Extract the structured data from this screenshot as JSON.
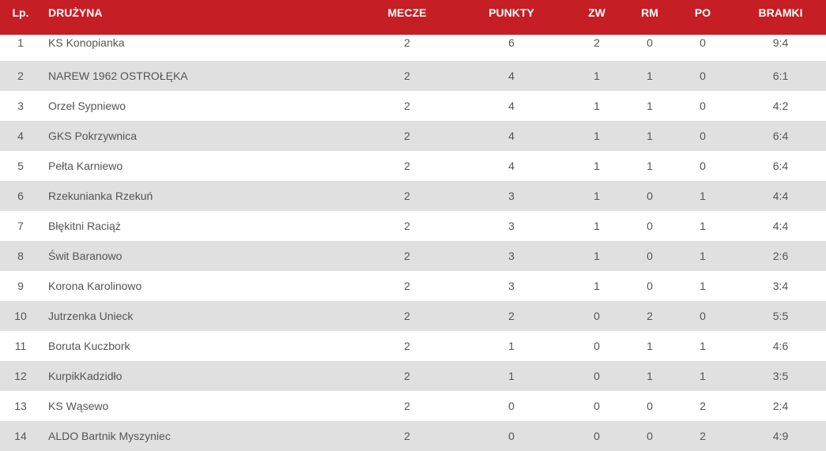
{
  "colors": {
    "header_bg": "#c51e24",
    "stripe": "#e0e0e0"
  },
  "headers": {
    "lp": "Lp.",
    "team": "DRUŻYNA",
    "matches": "MECZE",
    "points": "PUNKTY",
    "w": "ZW",
    "d": "RM",
    "l": "PO",
    "goals": "BRAMKI"
  },
  "rows": [
    [
      "1",
      "KS Konopianka",
      "2",
      "6",
      "2",
      "0",
      "0",
      "9:4"
    ],
    [
      "2",
      "NAREW 1962 OSTROŁĘKA",
      "2",
      "4",
      "1",
      "1",
      "0",
      "6:1"
    ],
    [
      "3",
      "Orzeł Sypniewo",
      "2",
      "4",
      "1",
      "1",
      "0",
      "4:2"
    ],
    [
      "4",
      "GKS Pokrzywnica",
      "2",
      "4",
      "1",
      "1",
      "0",
      "6:4"
    ],
    [
      "5",
      "Pełta Karniewo",
      "2",
      "4",
      "1",
      "1",
      "0",
      "6:4"
    ],
    [
      "6",
      "Rzekunianka Rzekuń",
      "2",
      "3",
      "1",
      "0",
      "1",
      "4:4"
    ],
    [
      "7",
      "Błękitni Raciąż",
      "2",
      "3",
      "1",
      "0",
      "1",
      "4:4"
    ],
    [
      "8",
      "Świt Baranowo",
      "2",
      "3",
      "1",
      "0",
      "1",
      "2:6"
    ],
    [
      "9",
      "Korona Karolinowo",
      "2",
      "3",
      "1",
      "0",
      "1",
      "3:4"
    ],
    [
      "10",
      "Jutrzenka Unieck",
      "2",
      "2",
      "0",
      "2",
      "0",
      "5:5"
    ],
    [
      "11",
      "Boruta Kuczbork",
      "2",
      "1",
      "0",
      "1",
      "1",
      "4:6"
    ],
    [
      "12",
      "KurpikKadzidło",
      "2",
      "1",
      "0",
      "1",
      "1",
      "3:5"
    ],
    [
      "13",
      "KS Wąsewo",
      "2",
      "0",
      "0",
      "0",
      "2",
      "2:4"
    ],
    [
      "14",
      "ALDO Bartnik Myszyniec",
      "2",
      "0",
      "0",
      "0",
      "2",
      "4:9"
    ]
  ]
}
